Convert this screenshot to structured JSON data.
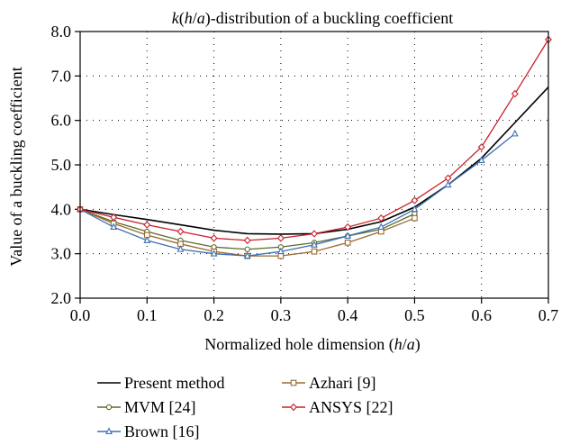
{
  "chart_data": {
    "type": "line",
    "title_parts": [
      "k",
      "(",
      "h",
      "/",
      "a",
      ")-distribution of a buckling coefficient"
    ],
    "xlabel_parts": [
      "Normalized hole dimension (",
      "h",
      "/",
      "a",
      ")"
    ],
    "ylabel": "Value of a buckling coefficient",
    "xlim": [
      0,
      0.7
    ],
    "ylim": [
      2,
      8
    ],
    "x_ticks": [
      0.0,
      0.1,
      0.2,
      0.3,
      0.4,
      0.5,
      0.6,
      0.7
    ],
    "x_tick_labels": [
      "0.0",
      "0.1",
      "0.2",
      "0.3",
      "0.4",
      "0.5",
      "0.6",
      "0.7"
    ],
    "y_ticks": [
      2,
      3,
      4,
      5,
      6,
      7,
      8
    ],
    "y_tick_labels": [
      "2.0",
      "3.0",
      "4.0",
      "5.0",
      "6.0",
      "7.0",
      "8.0"
    ],
    "grid": "dotted",
    "legend_placement": "bottom",
    "series": [
      {
        "name": "Present method",
        "color": "#000000",
        "marker": "none",
        "x": [
          0.0,
          0.05,
          0.1,
          0.15,
          0.2,
          0.25,
          0.3,
          0.35,
          0.4,
          0.45,
          0.5,
          0.55,
          0.6,
          0.65,
          0.7
        ],
        "y": [
          4.0,
          3.88,
          3.77,
          3.65,
          3.53,
          3.45,
          3.44,
          3.45,
          3.55,
          3.72,
          4.05,
          4.55,
          5.15,
          5.95,
          6.75
        ]
      },
      {
        "name": "MVM [24]",
        "color": "#5b6b2a",
        "marker": "circle",
        "x": [
          0.0,
          0.05,
          0.1,
          0.15,
          0.2,
          0.25,
          0.3,
          0.35,
          0.4,
          0.45,
          0.5
        ],
        "y": [
          4.0,
          3.72,
          3.5,
          3.3,
          3.15,
          3.1,
          3.15,
          3.25,
          3.4,
          3.55,
          3.9
        ]
      },
      {
        "name": "Brown [16]",
        "color": "#3c6fb4",
        "marker": "triangle",
        "x": [
          0.0,
          0.05,
          0.1,
          0.15,
          0.2,
          0.25,
          0.3,
          0.35,
          0.4,
          0.45,
          0.5,
          0.55,
          0.6,
          0.65
        ],
        "y": [
          4.0,
          3.6,
          3.3,
          3.1,
          3.0,
          2.95,
          3.05,
          3.2,
          3.4,
          3.6,
          4.0,
          4.55,
          5.1,
          5.7
        ]
      },
      {
        "name": "Azhari [9]",
        "color": "#9a6a2e",
        "marker": "square",
        "x": [
          0.0,
          0.05,
          0.1,
          0.15,
          0.2,
          0.25,
          0.3,
          0.35,
          0.4,
          0.45,
          0.5
        ],
        "y": [
          4.0,
          3.68,
          3.42,
          3.22,
          3.05,
          2.95,
          2.95,
          3.05,
          3.25,
          3.5,
          3.8
        ]
      },
      {
        "name": "ANSYS [22]",
        "color": "#c8202a",
        "marker": "diamond",
        "x": [
          0.0,
          0.05,
          0.1,
          0.15,
          0.2,
          0.25,
          0.3,
          0.35,
          0.4,
          0.45,
          0.5,
          0.55,
          0.6,
          0.65,
          0.7
        ],
        "y": [
          4.0,
          3.82,
          3.65,
          3.5,
          3.35,
          3.3,
          3.35,
          3.45,
          3.6,
          3.8,
          4.2,
          4.7,
          5.4,
          6.6,
          7.82
        ]
      }
    ]
  }
}
